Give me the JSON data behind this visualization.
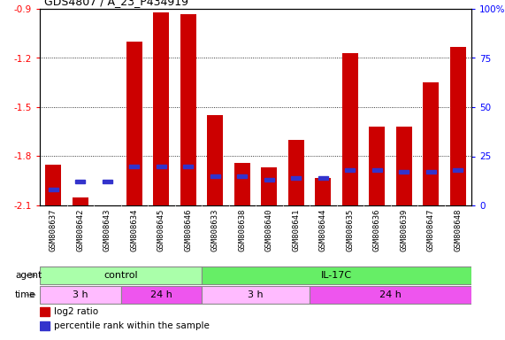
{
  "title": "GDS4807 / A_23_P434919",
  "samples": [
    "GSM808637",
    "GSM808642",
    "GSM808643",
    "GSM808634",
    "GSM808645",
    "GSM808646",
    "GSM808633",
    "GSM808638",
    "GSM808640",
    "GSM808641",
    "GSM808644",
    "GSM808635",
    "GSM808636",
    "GSM808639",
    "GSM808647",
    "GSM808648"
  ],
  "log2_ratio": [
    -1.85,
    -2.05,
    -2.1,
    -1.1,
    -0.92,
    -0.93,
    -1.55,
    -1.84,
    -1.87,
    -1.7,
    -1.93,
    -1.17,
    -1.62,
    -1.62,
    -1.35,
    -1.13
  ],
  "percentile_rank": [
    8,
    12,
    12,
    20,
    20,
    20,
    15,
    15,
    13,
    14,
    14,
    18,
    18,
    17,
    17,
    18
  ],
  "ylim_left": [
    -2.1,
    -0.9
  ],
  "yticks_left": [
    -2.1,
    -1.8,
    -1.5,
    -1.2,
    -0.9
  ],
  "yticks_right": [
    0,
    25,
    50,
    75,
    100
  ],
  "bar_color": "#cc0000",
  "blue_color": "#3333cc",
  "agent_groups": [
    {
      "label": "control",
      "start": 0,
      "end": 6,
      "color": "#aaffaa"
    },
    {
      "label": "IL-17C",
      "start": 6,
      "end": 16,
      "color": "#66ee66"
    }
  ],
  "time_groups": [
    {
      "label": "3 h",
      "start": 0,
      "end": 3,
      "color": "#ffbbff"
    },
    {
      "label": "24 h",
      "start": 3,
      "end": 6,
      "color": "#ee55ee"
    },
    {
      "label": "3 h",
      "start": 6,
      "end": 10,
      "color": "#ffbbff"
    },
    {
      "label": "24 h",
      "start": 10,
      "end": 16,
      "color": "#ee55ee"
    }
  ],
  "legend_red": "log2 ratio",
  "legend_blue": "percentile rank within the sample"
}
